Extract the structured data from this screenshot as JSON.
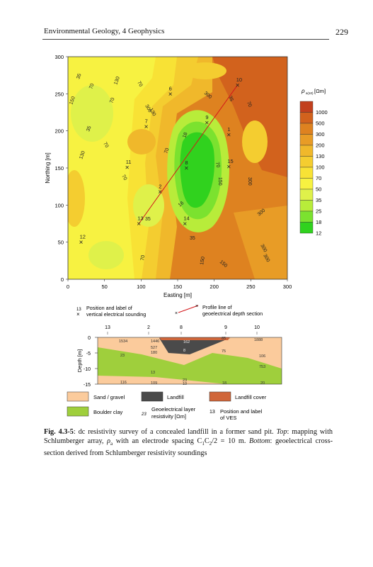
{
  "header": {
    "running_title": "Environmental Geology, 4 Geophysics",
    "page_number": "229"
  },
  "map": {
    "y_axis_label": "Northing [m]",
    "x_axis_label": "Easting [m]",
    "x_ticks": [
      "0",
      "50",
      "100",
      "150",
      "200",
      "250",
      "300"
    ],
    "y_ticks": [
      "0",
      "50",
      "100",
      "150",
      "200",
      "250",
      "300"
    ],
    "contour_labels": [
      {
        "text": "35"
      },
      {
        "text": "70"
      },
      {
        "text": "150"
      },
      {
        "text": "35"
      },
      {
        "text": "70"
      },
      {
        "text": "130"
      },
      {
        "text": "70"
      },
      {
        "text": "300"
      },
      {
        "text": "300"
      },
      {
        "text": "35"
      },
      {
        "text": "70"
      },
      {
        "text": "130"
      },
      {
        "text": "70"
      },
      {
        "text": "18"
      },
      {
        "text": "70"
      },
      {
        "text": "130"
      },
      {
        "text": "70"
      },
      {
        "text": "150"
      },
      {
        "text": "300"
      },
      {
        "text": "16"
      },
      {
        "text": "35"
      },
      {
        "text": "35"
      },
      {
        "text": "300"
      },
      {
        "text": "70"
      },
      {
        "text": "70"
      },
      {
        "text": "300"
      },
      {
        "text": "300"
      },
      {
        "text": "150"
      },
      {
        "text": "150"
      }
    ],
    "ves_points": [
      {
        "label": "1",
        "x": 220,
        "y": 195
      },
      {
        "label": "2",
        "x": 126,
        "y": 118
      },
      {
        "label": "6",
        "x": 140,
        "y": 250
      },
      {
        "label": "7",
        "x": 107,
        "y": 206
      },
      {
        "label": "8",
        "x": 162,
        "y": 150
      },
      {
        "label": "9",
        "x": 190,
        "y": 211
      },
      {
        "label": "10",
        "x": 232,
        "y": 262
      },
      {
        "label": "11",
        "x": 81,
        "y": 151
      },
      {
        "label": "12",
        "x": 18,
        "y": 50
      },
      {
        "label": "13",
        "x": 97,
        "y": 75
      },
      {
        "label": "14",
        "x": 160,
        "y": 75
      },
      {
        "label": "15",
        "x": 220,
        "y": 152
      }
    ],
    "profile_line": {
      "from": "13",
      "to": "10"
    },
    "legend": {
      "title": "ρ",
      "title_sub": "a(10)",
      "title_unit": "[Ωm]",
      "classes": [
        {
          "label": "1000",
          "color": "#c2401e"
        },
        {
          "label": "500",
          "color": "#d2621d"
        },
        {
          "label": "300",
          "color": "#de8220"
        },
        {
          "label": "200",
          "color": "#e89c26"
        },
        {
          "label": "130",
          "color": "#f0b82b"
        },
        {
          "label": "100",
          "color": "#f4cd30"
        },
        {
          "label": "70",
          "color": "#f8e235"
        },
        {
          "label": "50",
          "color": "#f7f241"
        },
        {
          "label": "35",
          "color": "#dff14a"
        },
        {
          "label": "25",
          "color": "#b8ec3a"
        },
        {
          "label": "18",
          "color": "#7be22f"
        },
        {
          "label": "12",
          "color": "#30d21e"
        }
      ]
    },
    "key": {
      "ves_num": "13",
      "ves_text_1": "Position and label of",
      "ves_text_2": "vertical electrical sounding",
      "profile_text_1": "Profile line of",
      "profile_text_2": "geoelectrical depth section"
    }
  },
  "section": {
    "y_axis_label": "Depth [m]",
    "y_ticks": [
      "0",
      "-5",
      "-10",
      "-15"
    ],
    "top_labels": [
      "13",
      "2",
      "8",
      "9",
      "10"
    ],
    "resistivity_labels": [
      "1534",
      "1446",
      "162",
      "85",
      "1888",
      "527",
      "180",
      "8",
      "75",
      "106",
      "23",
      "13",
      "23",
      "753",
      "116",
      "109",
      "10",
      "18",
      "20"
    ],
    "legend": {
      "sand": {
        "label": "Sand / gravel",
        "color": "#fbcb9c"
      },
      "landfill": {
        "label": "Landfill",
        "color": "#4a4a4a"
      },
      "cover": {
        "label": "Landfill cover",
        "color": "#d0663a"
      },
      "clay": {
        "label": "Boulder clay",
        "color": "#9fcf3c"
      },
      "layer_num": "23",
      "layer_text_1": "Geoelectrical layer",
      "layer_text_2": "resistivity [Ωm]",
      "ves_num": "13",
      "ves_text_1": "Position and label",
      "ves_text_2": "of VES"
    }
  },
  "caption": {
    "fig_label": "Fig. 4.3-5",
    "text_1": ": dc resistivity survey of a concealed landfill in a former sand pit. ",
    "top_label": "Top",
    "text_2": ": mapping with Schlumberger array, ",
    "rho_text": "ρ",
    "rho_sub": "a",
    "text_3": " with an electrode spacing C",
    "c1": "1",
    "text_4": "C",
    "c2": "2",
    "text_5": "/2 = 10 m. ",
    "bottom_label": "Bottom",
    "text_6": ": geoelectrical cross-section derived from Schlumberger resistivity soundings"
  }
}
